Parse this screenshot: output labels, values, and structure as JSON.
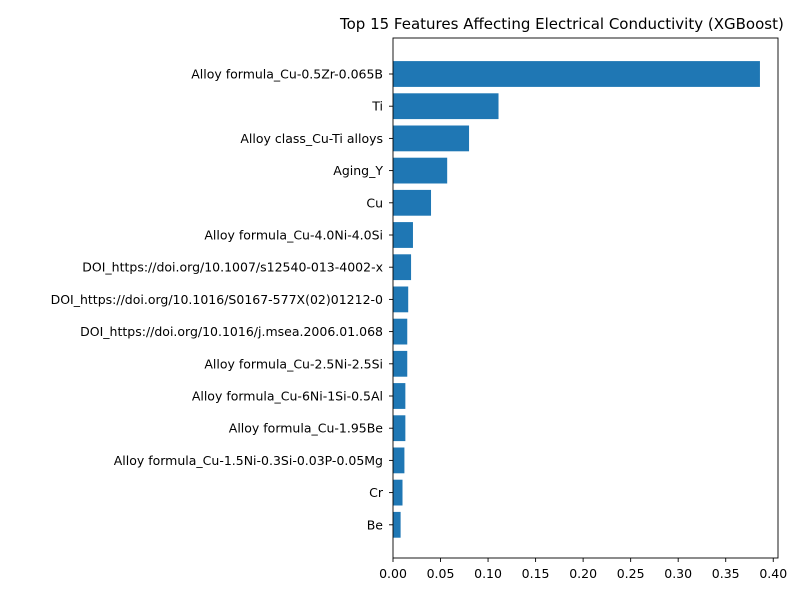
{
  "chart_data": {
    "type": "bar",
    "orientation": "horizontal",
    "title": "Top 15 Features Affecting Electrical Conductivity (XGBoost)",
    "xlabel": "",
    "ylabel": "",
    "categories": [
      "Alloy formula_Cu-0.5Zr-0.065B",
      "Ti",
      "Alloy class_Cu-Ti alloys",
      "Aging_Y",
      "Cu",
      "Alloy formula_Cu-4.0Ni-4.0Si",
      "DOI_https://doi.org/10.1007/s12540-013-4002-x",
      "DOI_https://doi.org/10.1016/S0167-577X(02)01212-0",
      "DOI_https://doi.org/10.1016/j.msea.2006.01.068",
      "Alloy formula_Cu-2.5Ni-2.5Si",
      "Alloy formula_Cu-6Ni-1Si-0.5Al",
      "Alloy formula_Cu-1.95Be",
      "Alloy formula_Cu-1.5Ni-0.3Si-0.03P-0.05Mg",
      "Cr",
      "Be"
    ],
    "values": [
      0.386,
      0.111,
      0.08,
      0.057,
      0.04,
      0.021,
      0.019,
      0.016,
      0.015,
      0.015,
      0.013,
      0.013,
      0.012,
      0.01,
      0.008
    ],
    "xlim": [
      0,
      0.405
    ],
    "xticks": [
      0.0,
      0.05,
      0.1,
      0.15,
      0.2,
      0.25,
      0.3,
      0.35,
      0.4
    ],
    "xtick_labels": [
      "0.00",
      "0.05",
      "0.10",
      "0.15",
      "0.20",
      "0.25",
      "0.30",
      "0.35",
      "0.40"
    ],
    "grid": false,
    "bar_color": "#1f77b4"
  }
}
